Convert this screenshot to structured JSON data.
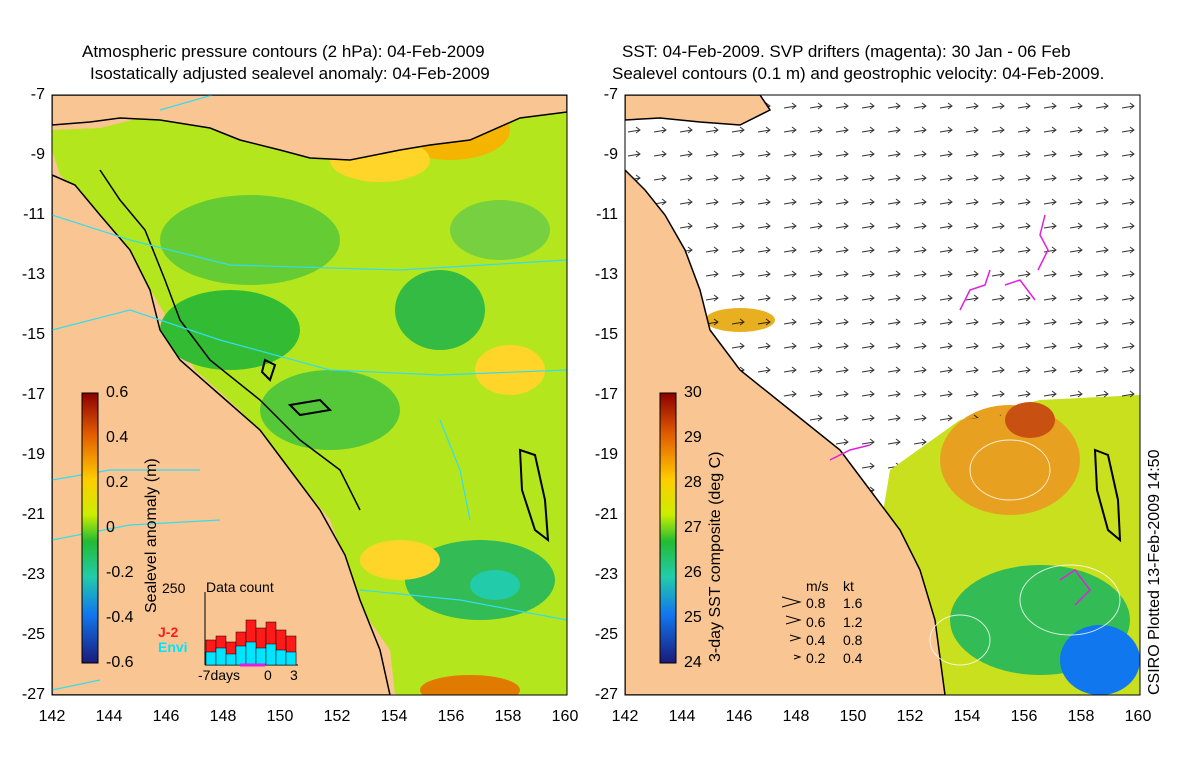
{
  "left_panel": {
    "title_line1": "Atmospheric pressure contours (2 hPa): 04-Feb-2009",
    "title_line2": "Isostatically adjusted sealevel anomaly: 04-Feb-2009",
    "y_ticks": [
      "-7",
      "-9",
      "-11",
      "-13",
      "-15",
      "-17",
      "-19",
      "-21",
      "-23",
      "-25",
      "-27"
    ],
    "x_ticks": [
      "142",
      "144",
      "146",
      "148",
      "150",
      "152",
      "154",
      "156",
      "158",
      "160"
    ],
    "colorbar": {
      "label": "Sealevel anomaly (m)",
      "ticks": [
        "0.6",
        "0.4",
        "0.2",
        "0",
        "-0.2",
        "-0.4",
        "-0.6"
      ]
    },
    "histogram": {
      "title": "Data count",
      "ymax_label": "250",
      "x_labels": [
        "-7days",
        "0",
        "3"
      ],
      "series_labels": [
        "J-2",
        "Envi"
      ],
      "series_colors": [
        "#ff1a1a",
        "#00e5ff"
      ]
    }
  },
  "right_panel": {
    "title_line1": "SST: 04-Feb-2009. SVP drifters (magenta): 30 Jan - 06 Feb",
    "title_line2": "Sealevel contours (0.1 m) and geostrophic velocity: 04-Feb-2009.",
    "y_ticks": [
      "-7",
      "-9",
      "-11",
      "-13",
      "-15",
      "-17",
      "-19",
      "-21",
      "-23",
      "-25",
      "-27"
    ],
    "x_ticks": [
      "142",
      "144",
      "146",
      "148",
      "150",
      "152",
      "154",
      "156",
      "158",
      "160"
    ],
    "colorbar": {
      "label": "3-day SST composite (deg C)",
      "ticks": [
        "30",
        "29",
        "28",
        "27",
        "26",
        "25",
        "24"
      ]
    },
    "velocity_legend": {
      "headers": [
        "m/s",
        "kt"
      ],
      "rows": [
        [
          "0.8",
          "1.6"
        ],
        [
          "0.6",
          "1.2"
        ],
        [
          "0.4",
          "0.8"
        ],
        [
          "0.2",
          "0.4"
        ]
      ]
    }
  },
  "credit": "CSIRO Plotted 13-Feb-2009 14:50",
  "colors": {
    "land": "#f9c693",
    "coast": "#000000",
    "pressure_contour": "#33ddee",
    "drifter": "#e020e0"
  }
}
